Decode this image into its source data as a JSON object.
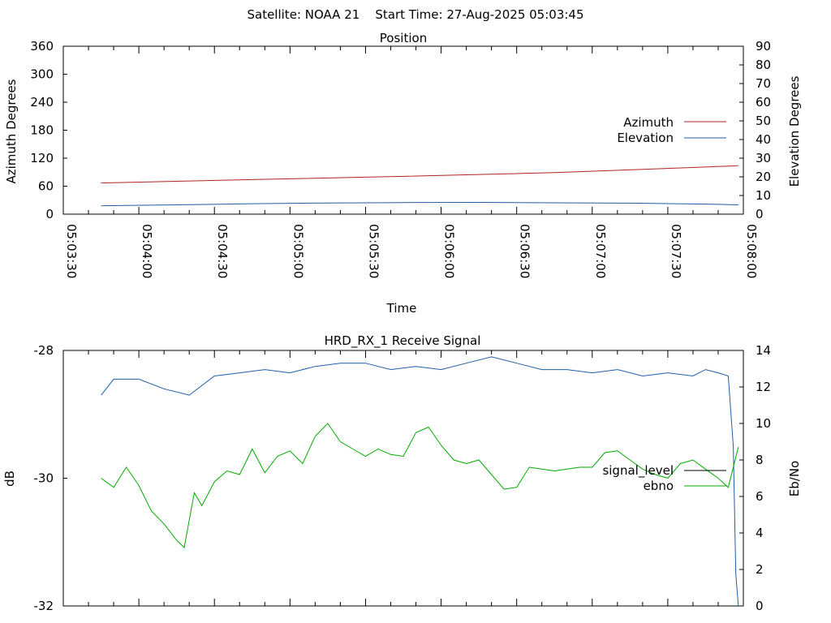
{
  "page": {
    "header": "Satellite: NOAA 21    Start Time: 27-Aug-2025 05:03:45"
  },
  "chart_data": [
    {
      "type": "line",
      "title": "Position",
      "xlabel": "Time",
      "ylabel": "Azimuth Degrees",
      "y2label": "Elevation Degrees",
      "x_ticks": [
        "05:03:30",
        "05:04:00",
        "05:04:30",
        "05:05:00",
        "05:05:30",
        "05:06:00",
        "05:06:30",
        "05:07:00",
        "05:07:30",
        "05:08:00"
      ],
      "xlim_seconds": [
        0,
        270
      ],
      "ylim": [
        0,
        360
      ],
      "y_ticks": [
        0,
        60,
        120,
        180,
        240,
        300,
        360
      ],
      "y2lim": [
        0,
        90
      ],
      "y2_ticks": [
        0,
        10,
        20,
        30,
        40,
        50,
        60,
        70,
        80,
        90
      ],
      "legend_position": "right",
      "series": [
        {
          "name": "Azimuth",
          "axis": "y1",
          "color": "#b22222",
          "points": [
            [
              15,
              67
            ],
            [
              75,
              74
            ],
            [
              135,
              81
            ],
            [
              195,
              89
            ],
            [
              255,
              101
            ],
            [
              268,
              104
            ]
          ]
        },
        {
          "name": "Elevation",
          "axis": "y2",
          "color": "#1f5ea8",
          "points": [
            [
              15,
              4.5
            ],
            [
              45,
              5.0
            ],
            [
              75,
              5.6
            ],
            [
              105,
              6.0
            ],
            [
              135,
              6.2
            ],
            [
              165,
              6.3
            ],
            [
              195,
              6.1
            ],
            [
              225,
              5.9
            ],
            [
              255,
              5.4
            ],
            [
              268,
              5.0
            ]
          ]
        }
      ]
    },
    {
      "type": "line",
      "title": "HRD_RX_1 Receive Signal",
      "ylabel": "dB",
      "y2label": "Eb/No",
      "xlim_seconds": [
        0,
        270
      ],
      "ylim": [
        -32,
        -28
      ],
      "y_ticks": [
        -32,
        -30,
        -28
      ],
      "y2lim": [
        0,
        14
      ],
      "y2_ticks": [
        0,
        2,
        4,
        6,
        8,
        10,
        12,
        14
      ],
      "legend_position": "right",
      "series": [
        {
          "name": "signal_level",
          "axis": "y1",
          "color": "#1f5ea8",
          "points": [
            [
              15,
              -28.7
            ],
            [
              20,
              -28.45
            ],
            [
              30,
              -28.45
            ],
            [
              40,
              -28.6
            ],
            [
              50,
              -28.7
            ],
            [
              60,
              -28.4
            ],
            [
              70,
              -28.35
            ],
            [
              80,
              -28.3
            ],
            [
              90,
              -28.35
            ],
            [
              100,
              -28.25
            ],
            [
              110,
              -28.2
            ],
            [
              120,
              -28.2
            ],
            [
              130,
              -28.3
            ],
            [
              140,
              -28.25
            ],
            [
              150,
              -28.3
            ],
            [
              160,
              -28.2
            ],
            [
              170,
              -28.1
            ],
            [
              180,
              -28.2
            ],
            [
              190,
              -28.3
            ],
            [
              200,
              -28.3
            ],
            [
              210,
              -28.35
            ],
            [
              220,
              -28.3
            ],
            [
              230,
              -28.4
            ],
            [
              240,
              -28.35
            ],
            [
              250,
              -28.4
            ],
            [
              255,
              -28.3
            ],
            [
              260,
              -28.35
            ],
            [
              264,
              -28.4
            ],
            [
              266,
              -29.5
            ],
            [
              267,
              -31.5
            ],
            [
              268,
              -32
            ]
          ]
        },
        {
          "name": "ebno",
          "axis": "y2",
          "color": "#00aa00",
          "points": [
            [
              15,
              7.0
            ],
            [
              20,
              6.5
            ],
            [
              25,
              7.6
            ],
            [
              30,
              6.6
            ],
            [
              35,
              5.2
            ],
            [
              40,
              4.5
            ],
            [
              45,
              3.6
            ],
            [
              48,
              3.2
            ],
            [
              52,
              6.2
            ],
            [
              55,
              5.5
            ],
            [
              60,
              6.8
            ],
            [
              65,
              7.4
            ],
            [
              70,
              7.2
            ],
            [
              75,
              8.6
            ],
            [
              80,
              7.3
            ],
            [
              85,
              8.2
            ],
            [
              90,
              8.5
            ],
            [
              95,
              7.8
            ],
            [
              100,
              9.3
            ],
            [
              105,
              10.0
            ],
            [
              110,
              9.0
            ],
            [
              115,
              8.6
            ],
            [
              120,
              8.2
            ],
            [
              125,
              8.6
            ],
            [
              130,
              8.3
            ],
            [
              135,
              8.2
            ],
            [
              140,
              9.5
            ],
            [
              145,
              9.8
            ],
            [
              150,
              8.8
            ],
            [
              155,
              8.0
            ],
            [
              160,
              7.8
            ],
            [
              165,
              8.0
            ],
            [
              170,
              7.2
            ],
            [
              175,
              6.4
            ],
            [
              180,
              6.5
            ],
            [
              185,
              7.6
            ],
            [
              190,
              7.5
            ],
            [
              195,
              7.4
            ],
            [
              200,
              7.5
            ],
            [
              205,
              7.6
            ],
            [
              210,
              7.6
            ],
            [
              215,
              8.4
            ],
            [
              220,
              8.5
            ],
            [
              225,
              8.0
            ],
            [
              230,
              7.5
            ],
            [
              235,
              7.2
            ],
            [
              240,
              7.0
            ],
            [
              245,
              7.8
            ],
            [
              250,
              8.0
            ],
            [
              255,
              7.5
            ],
            [
              260,
              7.0
            ],
            [
              264,
              6.5
            ],
            [
              268,
              8.7
            ]
          ]
        }
      ]
    }
  ]
}
